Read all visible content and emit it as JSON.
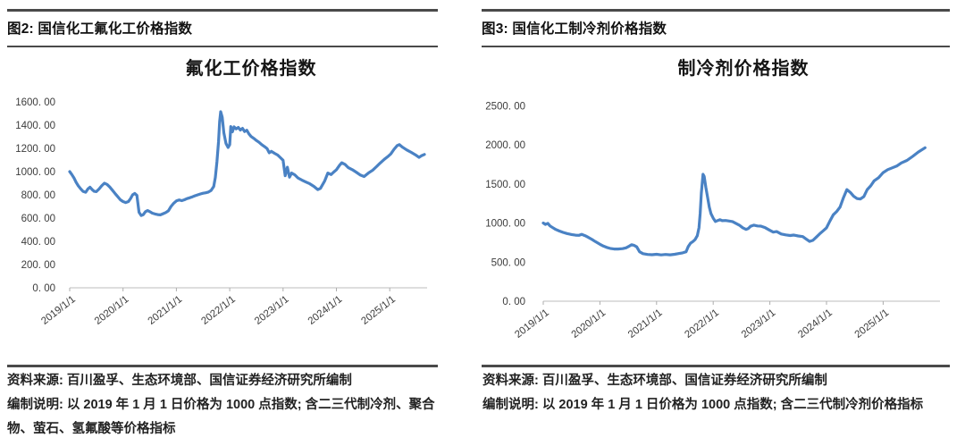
{
  "figures": [
    {
      "id": "fluorochemical",
      "header": "图2: 国信化工氟化工价格指数",
      "source": "资料来源: 百川盈孚、生态环境部、国信证券经济研究所编制",
      "note": "编制说明: 以 2019 年 1 月 1 日价格为 1000 点指数; 含二三代制冷剂、聚合物、萤石、氢氟酸等价格指标"
    },
    {
      "id": "refrigerant",
      "header": "图3: 国信化工制冷剂价格指数",
      "source": "资料来源: 百川盈孚、生态环境部、国信证券经济研究所编制",
      "note": "编制说明: 以 2019 年 1 月 1 日价格为 1000 点指数; 含二三代制冷剂价格指标"
    }
  ],
  "chart_data": [
    {
      "type": "line",
      "title": "氟化工价格指数",
      "xlabel": "",
      "ylabel": "",
      "grid": false,
      "legend": "none",
      "line_color": "#4a82c4",
      "ylim": [
        0,
        1600
      ],
      "y_tick_step": 200,
      "y_tick_labels": [
        "0. 00",
        "200. 00",
        "400. 00",
        "600. 00",
        "800. 00",
        "1000. 00",
        "1200. 00",
        "1400. 00",
        "1600. 00"
      ],
      "x_tick_labels": [
        "2019/1/1",
        "2020/1/1",
        "2021/1/1",
        "2022/1/1",
        "2023/1/1",
        "2024/1/1",
        "2025/1/1"
      ],
      "x_range_years": [
        2019.0,
        2025.7
      ],
      "series": [
        {
          "name": "氟化工价格指数",
          "points": [
            [
              2019.0,
              1000
            ],
            [
              2019.04,
              975
            ],
            [
              2019.08,
              945
            ],
            [
              2019.12,
              908
            ],
            [
              2019.16,
              878
            ],
            [
              2019.2,
              855
            ],
            [
              2019.25,
              830
            ],
            [
              2019.3,
              822
            ],
            [
              2019.34,
              850
            ],
            [
              2019.38,
              866
            ],
            [
              2019.42,
              845
            ],
            [
              2019.46,
              830
            ],
            [
              2019.5,
              828
            ],
            [
              2019.55,
              850
            ],
            [
              2019.6,
              878
            ],
            [
              2019.65,
              900
            ],
            [
              2019.7,
              890
            ],
            [
              2019.75,
              868
            ],
            [
              2019.8,
              840
            ],
            [
              2019.85,
              812
            ],
            [
              2019.9,
              785
            ],
            [
              2019.95,
              758
            ],
            [
              2020.0,
              742
            ],
            [
              2020.05,
              734
            ],
            [
              2020.1,
              742
            ],
            [
              2020.14,
              768
            ],
            [
              2020.18,
              800
            ],
            [
              2020.22,
              812
            ],
            [
              2020.26,
              795
            ],
            [
              2020.3,
              650
            ],
            [
              2020.34,
              622
            ],
            [
              2020.38,
              630
            ],
            [
              2020.42,
              655
            ],
            [
              2020.46,
              665
            ],
            [
              2020.5,
              655
            ],
            [
              2020.55,
              642
            ],
            [
              2020.6,
              635
            ],
            [
              2020.65,
              630
            ],
            [
              2020.7,
              628
            ],
            [
              2020.75,
              638
            ],
            [
              2020.8,
              648
            ],
            [
              2020.85,
              662
            ],
            [
              2020.9,
              700
            ],
            [
              2020.95,
              728
            ],
            [
              2021.0,
              748
            ],
            [
              2021.05,
              756
            ],
            [
              2021.1,
              750
            ],
            [
              2021.15,
              758
            ],
            [
              2021.2,
              768
            ],
            [
              2021.25,
              775
            ],
            [
              2021.3,
              783
            ],
            [
              2021.35,
              792
            ],
            [
              2021.4,
              800
            ],
            [
              2021.45,
              808
            ],
            [
              2021.5,
              814
            ],
            [
              2021.55,
              818
            ],
            [
              2021.6,
              824
            ],
            [
              2021.65,
              838
            ],
            [
              2021.7,
              872
            ],
            [
              2021.73,
              950
            ],
            [
              2021.76,
              1085
            ],
            [
              2021.79,
              1260
            ],
            [
              2021.81,
              1430
            ],
            [
              2021.83,
              1515
            ],
            [
              2021.86,
              1468
            ],
            [
              2021.89,
              1335
            ],
            [
              2021.93,
              1242
            ],
            [
              2021.97,
              1208
            ],
            [
              2022.0,
              1232
            ],
            [
              2022.02,
              1388
            ],
            [
              2022.05,
              1342
            ],
            [
              2022.08,
              1385
            ],
            [
              2022.12,
              1368
            ],
            [
              2022.16,
              1380
            ],
            [
              2022.2,
              1358
            ],
            [
              2022.24,
              1372
            ],
            [
              2022.28,
              1345
            ],
            [
              2022.32,
              1356
            ],
            [
              2022.36,
              1325
            ],
            [
              2022.4,
              1302
            ],
            [
              2022.45,
              1286
            ],
            [
              2022.5,
              1268
            ],
            [
              2022.55,
              1252
            ],
            [
              2022.6,
              1232
            ],
            [
              2022.65,
              1216
            ],
            [
              2022.7,
              1198
            ],
            [
              2022.74,
              1162
            ],
            [
              2022.78,
              1175
            ],
            [
              2022.84,
              1158
            ],
            [
              2022.9,
              1142
            ],
            [
              2022.95,
              1120
            ],
            [
              2023.0,
              1098
            ],
            [
              2023.04,
              965
            ],
            [
              2023.08,
              1038
            ],
            [
              2023.12,
              952
            ],
            [
              2023.16,
              988
            ],
            [
              2023.22,
              972
            ],
            [
              2023.28,
              945
            ],
            [
              2023.35,
              928
            ],
            [
              2023.42,
              912
            ],
            [
              2023.5,
              895
            ],
            [
              2023.58,
              872
            ],
            [
              2023.65,
              845
            ],
            [
              2023.7,
              855
            ],
            [
              2023.78,
              920
            ],
            [
              2023.84,
              988
            ],
            [
              2023.9,
              975
            ],
            [
              2023.95,
              996
            ],
            [
              2024.0,
              1016
            ],
            [
              2024.06,
              1055
            ],
            [
              2024.1,
              1076
            ],
            [
              2024.16,
              1062
            ],
            [
              2024.22,
              1035
            ],
            [
              2024.3,
              1016
            ],
            [
              2024.38,
              992
            ],
            [
              2024.45,
              970
            ],
            [
              2024.52,
              958
            ],
            [
              2024.6,
              988
            ],
            [
              2024.68,
              1012
            ],
            [
              2024.75,
              1042
            ],
            [
              2024.82,
              1074
            ],
            [
              2024.9,
              1106
            ],
            [
              2024.96,
              1128
            ],
            [
              2025.02,
              1152
            ],
            [
              2025.08,
              1192
            ],
            [
              2025.14,
              1225
            ],
            [
              2025.18,
              1232
            ],
            [
              2025.24,
              1210
            ],
            [
              2025.32,
              1186
            ],
            [
              2025.4,
              1166
            ],
            [
              2025.48,
              1145
            ],
            [
              2025.55,
              1122
            ],
            [
              2025.6,
              1138
            ],
            [
              2025.65,
              1148
            ]
          ]
        }
      ]
    },
    {
      "type": "line",
      "title": "制冷剂价格指数",
      "xlabel": "",
      "ylabel": "",
      "grid": false,
      "legend": "none",
      "line_color": "#4a82c4",
      "ylim": [
        0,
        2500
      ],
      "y_tick_step": 500,
      "y_tick_labels": [
        "0. 00",
        "500. 00",
        "1000. 00",
        "1500. 00",
        "2000. 00",
        "2500. 00"
      ],
      "x_tick_labels": [
        "2019/1/1",
        "2020/1/1",
        "2021/1/1",
        "2022/1/1",
        "2023/1/1",
        "2024/1/1",
        "2025/1/1"
      ],
      "x_range_years": [
        2019.0,
        2025.75
      ],
      "series": [
        {
          "name": "制冷剂价格指数",
          "points": [
            [
              2019.0,
              1000
            ],
            [
              2019.04,
              982
            ],
            [
              2019.08,
              996
            ],
            [
              2019.12,
              962
            ],
            [
              2019.17,
              940
            ],
            [
              2019.22,
              918
            ],
            [
              2019.28,
              898
            ],
            [
              2019.35,
              880
            ],
            [
              2019.42,
              865
            ],
            [
              2019.5,
              852
            ],
            [
              2019.57,
              845
            ],
            [
              2019.63,
              842
            ],
            [
              2019.68,
              855
            ],
            [
              2019.74,
              838
            ],
            [
              2019.8,
              815
            ],
            [
              2019.86,
              790
            ],
            [
              2019.92,
              762
            ],
            [
              2020.0,
              728
            ],
            [
              2020.06,
              705
            ],
            [
              2020.12,
              688
            ],
            [
              2020.18,
              675
            ],
            [
              2020.25,
              668
            ],
            [
              2020.32,
              668
            ],
            [
              2020.4,
              672
            ],
            [
              2020.46,
              682
            ],
            [
              2020.52,
              705
            ],
            [
              2020.56,
              722
            ],
            [
              2020.6,
              715
            ],
            [
              2020.65,
              695
            ],
            [
              2020.7,
              632
            ],
            [
              2020.76,
              608
            ],
            [
              2020.84,
              598
            ],
            [
              2020.92,
              594
            ],
            [
              2021.0,
              600
            ],
            [
              2021.08,
              592
            ],
            [
              2021.16,
              598
            ],
            [
              2021.24,
              593
            ],
            [
              2021.32,
              600
            ],
            [
              2021.4,
              610
            ],
            [
              2021.46,
              618
            ],
            [
              2021.52,
              632
            ],
            [
              2021.56,
              700
            ],
            [
              2021.6,
              742
            ],
            [
              2021.64,
              762
            ],
            [
              2021.68,
              788
            ],
            [
              2021.72,
              838
            ],
            [
              2021.75,
              940
            ],
            [
              2021.77,
              1120
            ],
            [
              2021.79,
              1380
            ],
            [
              2021.82,
              1623
            ],
            [
              2021.84,
              1595
            ],
            [
              2021.87,
              1452
            ],
            [
              2021.9,
              1330
            ],
            [
              2021.93,
              1205
            ],
            [
              2021.96,
              1120
            ],
            [
              2022.0,
              1062
            ],
            [
              2022.04,
              1020
            ],
            [
              2022.08,
              1032
            ],
            [
              2022.12,
              1042
            ],
            [
              2022.16,
              1030
            ],
            [
              2022.22,
              1032
            ],
            [
              2022.28,
              1025
            ],
            [
              2022.34,
              1018
            ],
            [
              2022.4,
              996
            ],
            [
              2022.46,
              972
            ],
            [
              2022.52,
              940
            ],
            [
              2022.58,
              918
            ],
            [
              2022.62,
              930
            ],
            [
              2022.66,
              958
            ],
            [
              2022.72,
              972
            ],
            [
              2022.78,
              962
            ],
            [
              2022.84,
              960
            ],
            [
              2022.92,
              940
            ],
            [
              2023.0,
              906
            ],
            [
              2023.06,
              884
            ],
            [
              2023.12,
              890
            ],
            [
              2023.2,
              860
            ],
            [
              2023.28,
              848
            ],
            [
              2023.36,
              840
            ],
            [
              2023.42,
              846
            ],
            [
              2023.5,
              834
            ],
            [
              2023.58,
              826
            ],
            [
              2023.64,
              795
            ],
            [
              2023.7,
              765
            ],
            [
              2023.76,
              778
            ],
            [
              2023.82,
              820
            ],
            [
              2023.88,
              862
            ],
            [
              2023.94,
              900
            ],
            [
              2024.0,
              938
            ],
            [
              2024.06,
              1025
            ],
            [
              2024.12,
              1105
            ],
            [
              2024.18,
              1148
            ],
            [
              2024.24,
              1205
            ],
            [
              2024.3,
              1325
            ],
            [
              2024.36,
              1428
            ],
            [
              2024.42,
              1392
            ],
            [
              2024.48,
              1342
            ],
            [
              2024.54,
              1312
            ],
            [
              2024.6,
              1308
            ],
            [
              2024.66,
              1338
            ],
            [
              2024.72,
              1428
            ],
            [
              2024.78,
              1475
            ],
            [
              2024.84,
              1540
            ],
            [
              2024.92,
              1580
            ],
            [
              2025.0,
              1645
            ],
            [
              2025.08,
              1682
            ],
            [
              2025.16,
              1705
            ],
            [
              2025.24,
              1728
            ],
            [
              2025.32,
              1768
            ],
            [
              2025.42,
              1800
            ],
            [
              2025.52,
              1852
            ],
            [
              2025.62,
              1908
            ],
            [
              2025.74,
              1962
            ]
          ]
        }
      ]
    }
  ]
}
